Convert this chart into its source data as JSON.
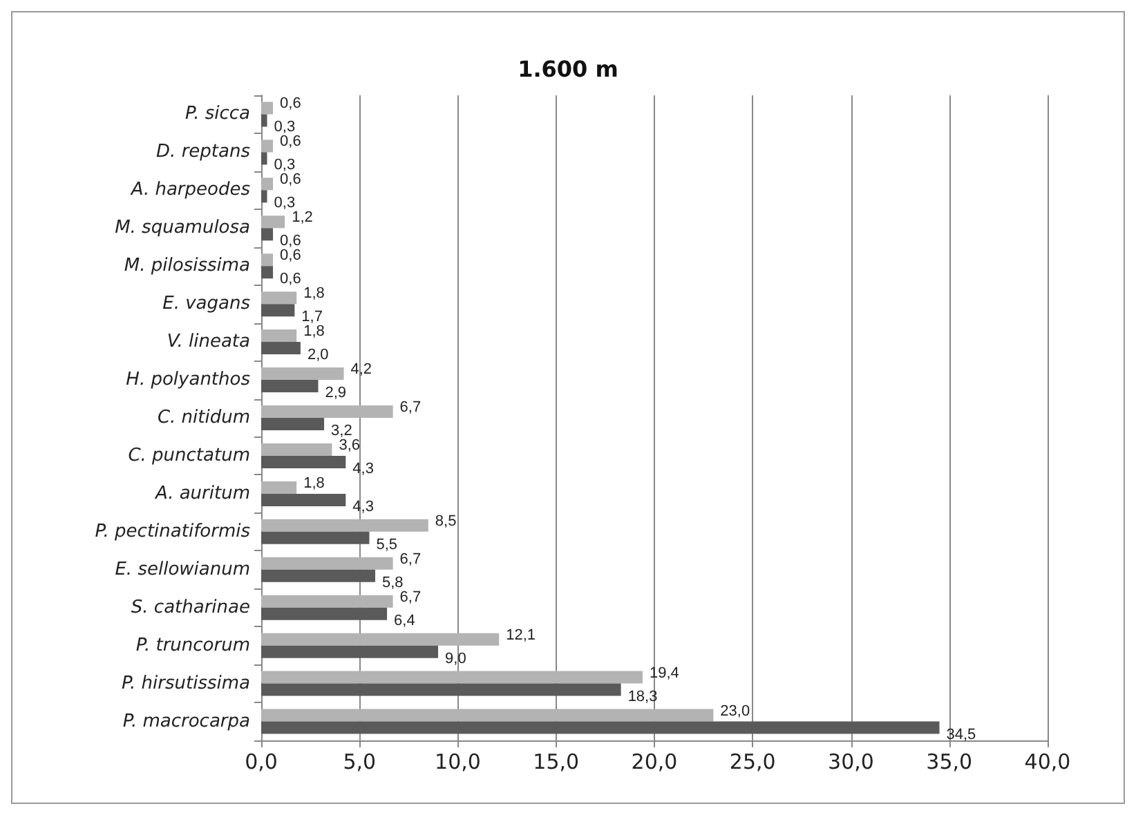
{
  "chart_data": {
    "type": "bar",
    "orientation": "horizontal",
    "title": "1.600 m",
    "categories": [
      "P. sicca",
      "D. reptans",
      "A. harpeodes",
      "M. squamulosa",
      "M. pilosissima",
      "E. vagans",
      "V. lineata",
      "H. polyanthos",
      "C. nitidum",
      "C. punctatum",
      "A. auritum",
      "P. pectinatiformis",
      "E. sellowianum",
      "S. catharinae",
      "P. truncorum",
      "P. hirsutissima",
      "P. macrocarpa"
    ],
    "series": [
      {
        "color": "#b3b3b3",
        "values": [
          0.6,
          0.6,
          0.6,
          1.2,
          0.6,
          1.8,
          1.8,
          4.2,
          6.7,
          3.6,
          1.8,
          8.5,
          6.7,
          6.7,
          12.1,
          19.4,
          23.0
        ],
        "value_labels": [
          "0,6",
          "0,6",
          "0,6",
          "1,2",
          "0,6",
          "1,8",
          "1,8",
          "4,2",
          "6,7",
          "3,6",
          "1,8",
          "8,5",
          "6,7",
          "6,7",
          "12,1",
          "19,4",
          "23,0"
        ]
      },
      {
        "color": "#5a5a5a",
        "values": [
          0.3,
          0.3,
          0.3,
          0.6,
          0.6,
          1.7,
          2.0,
          2.9,
          3.2,
          4.3,
          4.3,
          5.5,
          5.8,
          6.4,
          9.0,
          18.3,
          34.5
        ],
        "value_labels": [
          "0,3",
          "0,3",
          "0,3",
          "0,6",
          "0,6",
          "1,7",
          "2,0",
          "2,9",
          "3,2",
          "4,3",
          "4,3",
          "5,5",
          "5,8",
          "6,4",
          "9,0",
          "18,3",
          "34,5"
        ]
      }
    ],
    "xlim": [
      0,
      40
    ],
    "xticks": [
      {
        "value": 0,
        "label": "0,0"
      },
      {
        "value": 5,
        "label": "5,0"
      },
      {
        "value": 10,
        "label": "10,0"
      },
      {
        "value": 15,
        "label": "15,0"
      },
      {
        "value": 20,
        "label": "20,0"
      },
      {
        "value": 25,
        "label": "25,0"
      },
      {
        "value": 30,
        "label": "30,0"
      },
      {
        "value": 35,
        "label": "35,0"
      },
      {
        "value": 40,
        "label": "40,0"
      }
    ],
    "grid": "x"
  }
}
